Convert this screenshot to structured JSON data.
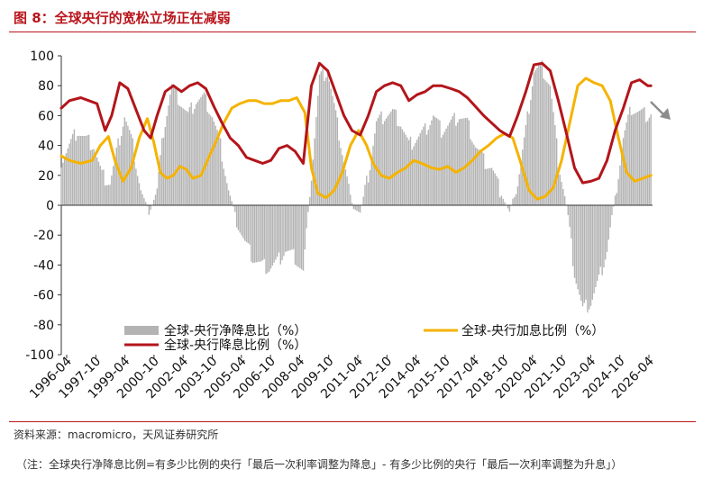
{
  "title": "图 8：全球央行的宽松立场正在减弱",
  "source": "资料来源：macromicro，天风证券研究所",
  "note": "（注：全球央行净降息比例=有多少比例的央行「最后一次利率调整为降息」- 有多少比例的央行「最后一次利率调整为升息」）",
  "colors": {
    "title": "#b8161c",
    "net_cut_bar": "#b3b3b3",
    "hike_line": "#f5b300",
    "cut_line": "#b3151b",
    "arrow": "#8c8c8c"
  },
  "chart_data": {
    "type": "bar+line",
    "ylim": [
      -100,
      100
    ],
    "yticks": [
      100,
      80,
      60,
      40,
      20,
      0,
      -20,
      -40,
      -60,
      -80,
      -100
    ],
    "x_tick_labels": [
      "1996-04",
      "1997-10",
      "1999-04",
      "2000-10",
      "2002-04",
      "2003-10",
      "2005-04",
      "2006-10",
      "2008-04",
      "2009-10",
      "2011-04",
      "2012-10",
      "2014-04",
      "2015-10",
      "2017-04",
      "2018-10",
      "2020-04",
      "2021-10",
      "2023-04",
      "2024-10",
      "2026-04"
    ],
    "x_range": [
      "1996-01",
      "2026-05"
    ],
    "legend": [
      "全球-央行净降息比（%）",
      "全球-央行加息比例（%）",
      "全球-央行降息比例（%）"
    ],
    "series": [
      {
        "name": "全球-央行净降息比（%）",
        "type": "bar",
        "points": [
          [
            "1996-01",
            30
          ],
          [
            "1996-06",
            40
          ],
          [
            "1996-11",
            50
          ],
          [
            "1997-04",
            44
          ],
          [
            "1997-09",
            40
          ],
          [
            "1998-02",
            20
          ],
          [
            "1998-07",
            15
          ],
          [
            "1998-12",
            40
          ],
          [
            "1999-04",
            60
          ],
          [
            "1999-09",
            40
          ],
          [
            "2000-02",
            10
          ],
          [
            "2000-07",
            -5
          ],
          [
            "2000-12",
            10
          ],
          [
            "2001-04",
            50
          ],
          [
            "2001-09",
            80
          ],
          [
            "2002-02",
            70
          ],
          [
            "2002-07",
            60
          ],
          [
            "2002-12",
            70
          ],
          [
            "2003-05",
            72
          ],
          [
            "2003-10",
            60
          ],
          [
            "2004-03",
            40
          ],
          [
            "2004-08",
            10
          ],
          [
            "2005-01",
            -10
          ],
          [
            "2005-06",
            -25
          ],
          [
            "2005-11",
            -35
          ],
          [
            "2006-04",
            -40
          ],
          [
            "2006-09",
            -42
          ],
          [
            "2007-02",
            -38
          ],
          [
            "2007-07",
            -30
          ],
          [
            "2008-01",
            -35
          ],
          [
            "2008-06",
            -45
          ],
          [
            "2008-11",
            20
          ],
          [
            "2009-04",
            85
          ],
          [
            "2009-09",
            90
          ],
          [
            "2010-02",
            60
          ],
          [
            "2010-07",
            30
          ],
          [
            "2010-12",
            0
          ],
          [
            "2011-05",
            -5
          ],
          [
            "2011-10",
            20
          ],
          [
            "2012-03",
            55
          ],
          [
            "2012-08",
            60
          ],
          [
            "2013-01",
            62
          ],
          [
            "2013-06",
            55
          ],
          [
            "2013-11",
            40
          ],
          [
            "2014-04",
            45
          ],
          [
            "2014-09",
            50
          ],
          [
            "2015-02",
            60
          ],
          [
            "2015-07",
            50
          ],
          [
            "2016-01",
            55
          ],
          [
            "2016-06",
            60
          ],
          [
            "2016-11",
            55
          ],
          [
            "2017-04",
            40
          ],
          [
            "2017-09",
            30
          ],
          [
            "2018-02",
            25
          ],
          [
            "2018-07",
            10
          ],
          [
            "2019-01",
            -5
          ],
          [
            "2019-06",
            15
          ],
          [
            "2019-11",
            50
          ],
          [
            "2020-04",
            90
          ],
          [
            "2020-09",
            92
          ],
          [
            "2021-02",
            80
          ],
          [
            "2021-07",
            30
          ],
          [
            "2021-12",
            0
          ],
          [
            "2022-05",
            -45
          ],
          [
            "2022-10",
            -70
          ],
          [
            "2023-03",
            -65
          ],
          [
            "2023-08",
            -50
          ],
          [
            "2024-01",
            -30
          ],
          [
            "2024-06",
            5
          ],
          [
            "2024-11",
            45
          ],
          [
            "2025-04",
            65
          ],
          [
            "2025-09",
            62
          ],
          [
            "2026-02",
            60
          ],
          [
            "2026-04",
            62
          ]
        ]
      },
      {
        "name": "全球-央行加息比例（%）",
        "type": "line",
        "points": [
          [
            "1996-01",
            33
          ],
          [
            "1996-06",
            30
          ],
          [
            "1997-01",
            28
          ],
          [
            "1997-08",
            30
          ],
          [
            "1998-01",
            40
          ],
          [
            "1998-06",
            46
          ],
          [
            "1998-10",
            30
          ],
          [
            "1999-03",
            16
          ],
          [
            "1999-08",
            25
          ],
          [
            "2000-01",
            45
          ],
          [
            "2000-06",
            58
          ],
          [
            "2000-10",
            42
          ],
          [
            "2001-02",
            22
          ],
          [
            "2001-06",
            18
          ],
          [
            "2001-10",
            20
          ],
          [
            "2002-02",
            26
          ],
          [
            "2002-06",
            24
          ],
          [
            "2002-10",
            18
          ],
          [
            "2003-03",
            20
          ],
          [
            "2003-07",
            30
          ],
          [
            "2003-12",
            42
          ],
          [
            "2004-05",
            55
          ],
          [
            "2004-10",
            65
          ],
          [
            "2005-03",
            68
          ],
          [
            "2005-08",
            70
          ],
          [
            "2006-01",
            70
          ],
          [
            "2006-06",
            68
          ],
          [
            "2006-11",
            68
          ],
          [
            "2007-04",
            70
          ],
          [
            "2007-09",
            70
          ],
          [
            "2008-02",
            72
          ],
          [
            "2008-07",
            62
          ],
          [
            "2008-11",
            25
          ],
          [
            "2009-03",
            8
          ],
          [
            "2009-08",
            5
          ],
          [
            "2010-01",
            10
          ],
          [
            "2010-06",
            22
          ],
          [
            "2010-11",
            40
          ],
          [
            "2011-04",
            50
          ],
          [
            "2011-09",
            40
          ],
          [
            "2012-01",
            28
          ],
          [
            "2012-06",
            20
          ],
          [
            "2012-11",
            18
          ],
          [
            "2013-04",
            22
          ],
          [
            "2013-09",
            25
          ],
          [
            "2014-02",
            30
          ],
          [
            "2014-07",
            28
          ],
          [
            "2015-01",
            25
          ],
          [
            "2015-06",
            24
          ],
          [
            "2015-11",
            26
          ],
          [
            "2016-04",
            22
          ],
          [
            "2016-09",
            25
          ],
          [
            "2017-02",
            30
          ],
          [
            "2017-07",
            36
          ],
          [
            "2017-12",
            40
          ],
          [
            "2018-05",
            45
          ],
          [
            "2018-10",
            48
          ],
          [
            "2019-03",
            45
          ],
          [
            "2019-08",
            28
          ],
          [
            "2020-01",
            10
          ],
          [
            "2020-06",
            4
          ],
          [
            "2020-11",
            6
          ],
          [
            "2021-04",
            12
          ],
          [
            "2021-09",
            30
          ],
          [
            "2022-02",
            55
          ],
          [
            "2022-07",
            80
          ],
          [
            "2022-12",
            85
          ],
          [
            "2023-05",
            82
          ],
          [
            "2023-10",
            80
          ],
          [
            "2024-03",
            70
          ],
          [
            "2024-08",
            45
          ],
          [
            "2025-01",
            22
          ],
          [
            "2025-06",
            16
          ],
          [
            "2025-11",
            18
          ],
          [
            "2026-04",
            20
          ]
        ]
      },
      {
        "name": "全球-央行降息比例（%）",
        "type": "line",
        "points": [
          [
            "1996-01",
            65
          ],
          [
            "1996-06",
            70
          ],
          [
            "1997-01",
            72
          ],
          [
            "1997-06",
            70
          ],
          [
            "1997-11",
            68
          ],
          [
            "1998-04",
            50
          ],
          [
            "1998-08",
            60
          ],
          [
            "1999-01",
            82
          ],
          [
            "1999-06",
            78
          ],
          [
            "1999-11",
            64
          ],
          [
            "2000-04",
            50
          ],
          [
            "2000-08",
            45
          ],
          [
            "2000-12",
            60
          ],
          [
            "2001-05",
            76
          ],
          [
            "2001-10",
            80
          ],
          [
            "2002-03",
            76
          ],
          [
            "2002-08",
            80
          ],
          [
            "2003-01",
            82
          ],
          [
            "2003-06",
            78
          ],
          [
            "2003-11",
            66
          ],
          [
            "2004-04",
            55
          ],
          [
            "2004-09",
            45
          ],
          [
            "2005-02",
            40
          ],
          [
            "2005-07",
            32
          ],
          [
            "2005-12",
            30
          ],
          [
            "2006-05",
            28
          ],
          [
            "2006-10",
            30
          ],
          [
            "2007-03",
            38
          ],
          [
            "2007-08",
            40
          ],
          [
            "2008-01",
            36
          ],
          [
            "2008-06",
            28
          ],
          [
            "2008-11",
            80
          ],
          [
            "2009-04",
            95
          ],
          [
            "2009-09",
            90
          ],
          [
            "2010-02",
            75
          ],
          [
            "2010-07",
            60
          ],
          [
            "2010-12",
            50
          ],
          [
            "2011-05",
            47
          ],
          [
            "2011-10",
            60
          ],
          [
            "2012-03",
            76
          ],
          [
            "2012-08",
            80
          ],
          [
            "2013-01",
            82
          ],
          [
            "2013-06",
            80
          ],
          [
            "2013-11",
            70
          ],
          [
            "2014-04",
            74
          ],
          [
            "2014-09",
            76
          ],
          [
            "2015-02",
            80
          ],
          [
            "2015-07",
            80
          ],
          [
            "2016-01",
            78
          ],
          [
            "2016-06",
            76
          ],
          [
            "2016-11",
            72
          ],
          [
            "2017-04",
            66
          ],
          [
            "2017-09",
            60
          ],
          [
            "2018-02",
            55
          ],
          [
            "2018-07",
            50
          ],
          [
            "2019-01",
            46
          ],
          [
            "2019-06",
            60
          ],
          [
            "2019-11",
            76
          ],
          [
            "2020-04",
            94
          ],
          [
            "2020-09",
            95
          ],
          [
            "2021-02",
            90
          ],
          [
            "2021-07",
            70
          ],
          [
            "2021-12",
            48
          ],
          [
            "2022-05",
            25
          ],
          [
            "2022-10",
            15
          ],
          [
            "2023-03",
            16
          ],
          [
            "2023-08",
            18
          ],
          [
            "2024-01",
            30
          ],
          [
            "2024-06",
            50
          ],
          [
            "2024-11",
            65
          ],
          [
            "2025-04",
            82
          ],
          [
            "2025-09",
            84
          ],
          [
            "2026-02",
            80
          ],
          [
            "2026-04",
            80
          ]
        ]
      }
    ]
  }
}
